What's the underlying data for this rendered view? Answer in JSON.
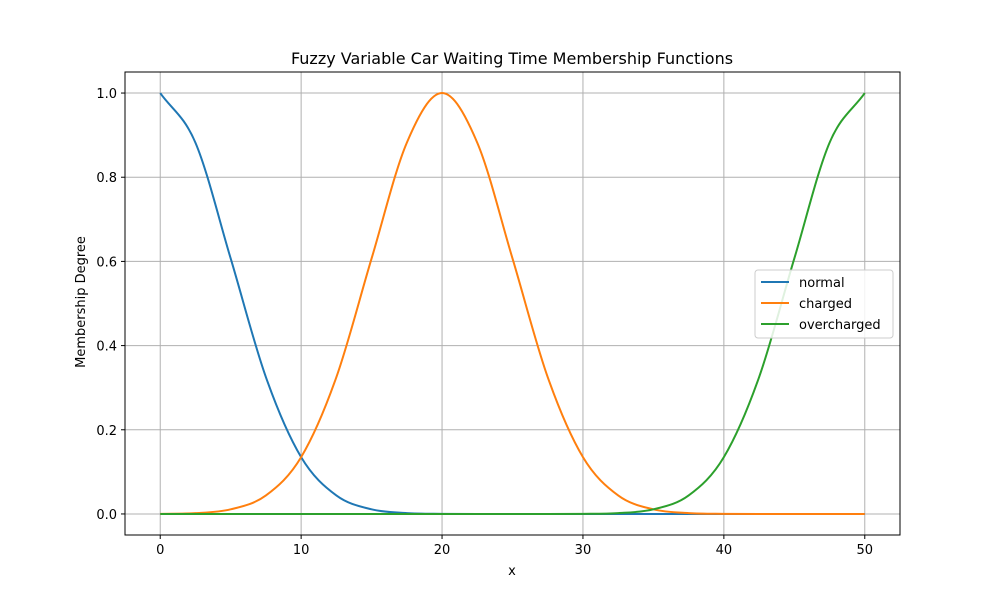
{
  "chart_data": {
    "type": "line",
    "title": "Fuzzy Variable Car Waiting Time Membership Functions",
    "xlabel": "x",
    "ylabel": "Membership Degree",
    "xlim": [
      -2.5,
      52.5
    ],
    "ylim": [
      -0.05,
      1.05
    ],
    "xticks": [
      0,
      10,
      20,
      30,
      40,
      50
    ],
    "yticks": [
      0.0,
      0.2,
      0.4,
      0.6,
      0.8,
      1.0
    ],
    "xtick_labels": [
      "0",
      "10",
      "20",
      "30",
      "40",
      "50"
    ],
    "ytick_labels": [
      "0.0",
      "0.2",
      "0.4",
      "0.6",
      "0.8",
      "1.0"
    ],
    "grid": true,
    "legend_position": "center-right",
    "x": [
      0,
      2.5,
      5,
      7.5,
      10,
      12.5,
      15,
      17.5,
      20,
      22.5,
      25,
      27.5,
      30,
      32.5,
      35,
      37.5,
      40,
      42.5,
      45,
      47.5,
      50
    ],
    "series": [
      {
        "name": "normal",
        "color": "#1f77b4",
        "values": [
          1.0,
          0.882,
          0.607,
          0.325,
          0.135,
          0.044,
          0.011,
          0.002,
          0.0003,
          0.0,
          0.0,
          0.0,
          0.0,
          0.0,
          0.0,
          0.0,
          0.0,
          0.0,
          0.0,
          0.0,
          0.0
        ]
      },
      {
        "name": "charged",
        "color": "#ff7f0e",
        "values": [
          0.0003,
          0.002,
          0.011,
          0.044,
          0.135,
          0.325,
          0.607,
          0.882,
          1.0,
          0.882,
          0.607,
          0.325,
          0.135,
          0.044,
          0.011,
          0.002,
          0.0003,
          0.0,
          0.0,
          0.0,
          0.0
        ]
      },
      {
        "name": "overcharged",
        "color": "#2ca02c",
        "values": [
          0.0,
          0.0,
          0.0,
          0.0,
          0.0,
          0.0,
          0.0,
          0.0,
          0.0,
          0.0,
          0.0,
          0.0,
          0.0003,
          0.002,
          0.011,
          0.044,
          0.135,
          0.325,
          0.607,
          0.882,
          1.0
        ]
      }
    ]
  }
}
